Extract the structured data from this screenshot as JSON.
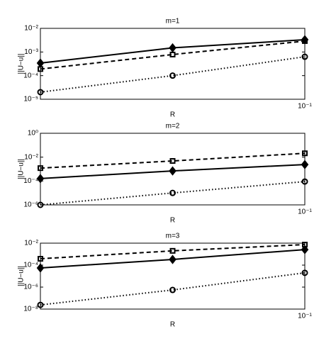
{
  "chart_data": [
    {
      "type": "line",
      "title": "m=1",
      "xlabel": "R",
      "ylabel": "||U−u||",
      "xscale": "log",
      "yscale": "log",
      "x": [
        0.025,
        0.05,
        0.1
      ],
      "xlim": [
        0.025,
        0.1
      ],
      "xticks": [
        {
          "value": 0.1,
          "label": "10⁻¹"
        }
      ],
      "ylim": [
        1e-05,
        0.01
      ],
      "yticks": [
        {
          "value": 0.01,
          "label": "10⁻²"
        },
        {
          "value": 0.001,
          "label": "10⁻³"
        },
        {
          "value": 0.0001,
          "label": "10⁻⁴"
        },
        {
          "value": 1e-05,
          "label": "10⁻⁵"
        }
      ],
      "series": [
        {
          "color": "#000000",
          "style": "solid",
          "marker": "diamond",
          "values": [
            0.00034,
            0.0015,
            0.0033
          ]
        },
        {
          "color": "#000000",
          "style": "dashed",
          "marker": "square",
          "values": [
            0.00019,
            0.00078,
            0.0029
          ]
        },
        {
          "color": "#000000",
          "style": "dotted",
          "marker": "circle",
          "values": [
            2e-05,
            0.0001,
            0.00063
          ]
        }
      ]
    },
    {
      "type": "line",
      "title": "m=2",
      "xlabel": "R",
      "ylabel": "||U−u||",
      "xscale": "log",
      "yscale": "log",
      "x": [
        0.025,
        0.05,
        0.1
      ],
      "xlim": [
        0.025,
        0.1
      ],
      "xticks": [
        {
          "value": 0.1,
          "label": "10⁻¹"
        }
      ],
      "ylim": [
        1e-06,
        1
      ],
      "yticks": [
        {
          "value": 1,
          "label": "10⁰"
        },
        {
          "value": 0.01,
          "label": "10⁻²"
        },
        {
          "value": 0.0001,
          "label": "10⁻⁴"
        },
        {
          "value": 1e-06,
          "label": "10⁻⁶"
        }
      ],
      "series": [
        {
          "color": "#000000",
          "style": "dashed",
          "marker": "square",
          "values": [
            0.0012,
            0.0048,
            0.021
          ]
        },
        {
          "color": "#000000",
          "style": "solid",
          "marker": "diamond",
          "values": [
            0.00016,
            0.0007,
            0.0024
          ]
        },
        {
          "color": "#000000",
          "style": "dotted",
          "marker": "circle",
          "values": [
            1e-06,
            1e-05,
            9e-05
          ]
        }
      ]
    },
    {
      "type": "line",
      "title": "m=3",
      "xlabel": "R",
      "ylabel": "||U−u||",
      "xscale": "log",
      "yscale": "log",
      "x": [
        0.025,
        0.05,
        0.1
      ],
      "xlim": [
        0.025,
        0.1
      ],
      "xticks": [
        {
          "value": 0.1,
          "label": "10⁻¹"
        }
      ],
      "ylim": [
        1e-08,
        0.01
      ],
      "yticks": [
        {
          "value": 0.01,
          "label": "10⁻²"
        },
        {
          "value": 0.0001,
          "label": "10⁻⁴"
        },
        {
          "value": 1e-06,
          "label": "10⁻⁶"
        },
        {
          "value": 1e-08,
          "label": "10⁻⁸"
        }
      ],
      "series": [
        {
          "color": "#000000",
          "style": "dashed",
          "marker": "square",
          "values": [
            0.00038,
            0.002,
            0.0074
          ]
        },
        {
          "color": "#000000",
          "style": "solid",
          "marker": "diamond",
          "values": [
            5.5e-05,
            0.00033,
            0.0026
          ]
        },
        {
          "color": "#000000",
          "style": "dotted",
          "marker": "circle",
          "values": [
            2.4e-08,
            5.5e-07,
            2e-05
          ]
        }
      ]
    }
  ]
}
